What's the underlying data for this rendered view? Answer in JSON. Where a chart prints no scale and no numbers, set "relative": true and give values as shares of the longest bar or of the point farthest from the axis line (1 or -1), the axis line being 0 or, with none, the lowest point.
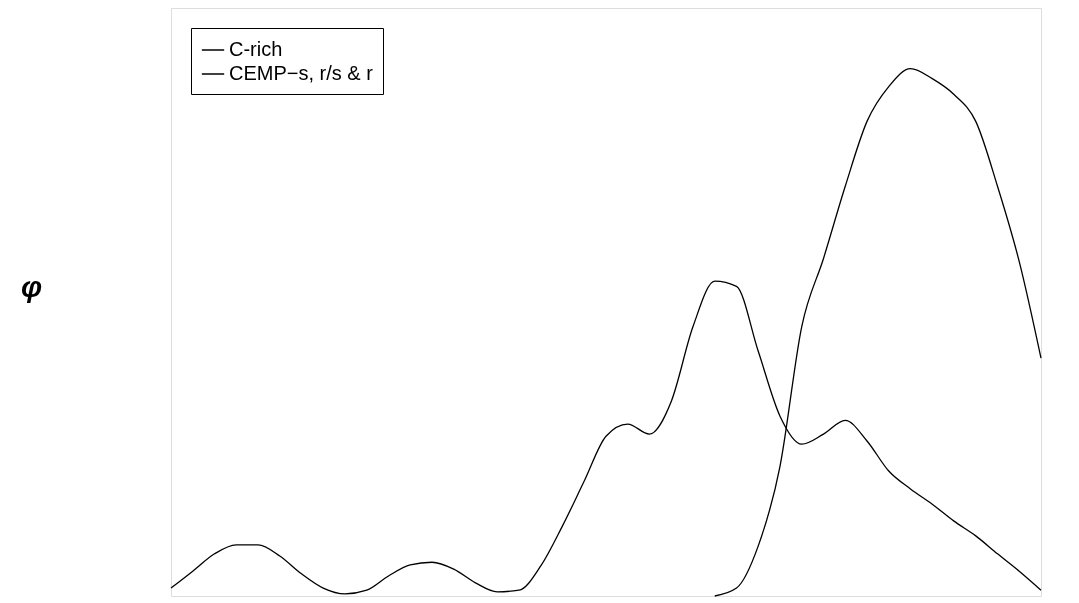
{
  "chart_data": {
    "type": "line",
    "relative": true,
    "ylabel": "φ",
    "legend": "top left",
    "line_style": "solid",
    "marker": "none",
    "grid": false,
    "categories": [
      null,
      null,
      null,
      null,
      null,
      null,
      null,
      null,
      null,
      null,
      null,
      null,
      null,
      null,
      null,
      null,
      null,
      null,
      null,
      null,
      null,
      null,
      null,
      null,
      null,
      null,
      null,
      null,
      null,
      null,
      null,
      null,
      null,
      null,
      null,
      null,
      null,
      null,
      null,
      null,
      null
    ],
    "series": [
      {
        "name": "C-rich",
        "color": "#000000",
        "values": [
          null,
          null,
          null,
          null,
          null,
          null,
          null,
          null,
          null,
          null,
          null,
          null,
          null,
          null,
          null,
          null,
          null,
          null,
          null,
          null,
          null,
          null,
          null,
          null,
          null,
          0,
          0.015,
          0.095,
          0.246,
          0.511,
          0.64,
          0.777,
          0.9,
          0.966,
          1,
          0.981,
          0.951,
          0.9,
          0.777,
          0.634,
          0.451
        ]
      },
      {
        "name": "CEMP−s, r/s & r",
        "color": "#000000",
        "values": [
          0.015,
          0.047,
          0.08,
          0.097,
          0.097,
          0.076,
          0.042,
          0.015,
          0.004,
          0.011,
          0.038,
          0.059,
          0.064,
          0.051,
          0.025,
          0.008,
          0.011,
          0.057,
          0.133,
          0.218,
          0.303,
          0.326,
          0.307,
          0.369,
          0.511,
          0.597,
          0.587,
          0.464,
          0.341,
          0.288,
          0.307,
          0.333,
          0.294,
          0.237,
          0.203,
          0.174,
          0.142,
          0.114,
          0.08,
          0.047,
          0.011
        ]
      }
    ]
  }
}
